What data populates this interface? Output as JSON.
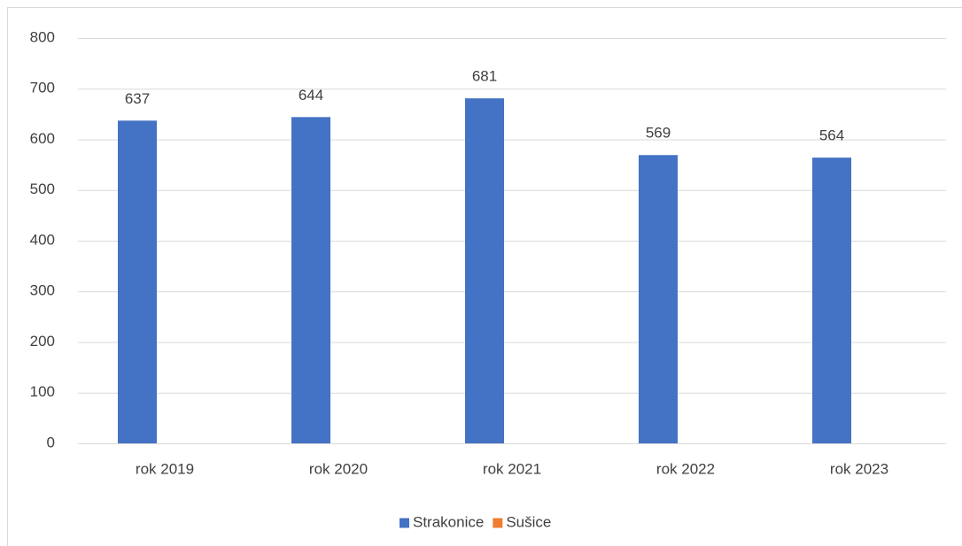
{
  "chart_data": {
    "type": "bar",
    "categories": [
      "rok 2019",
      "rok 2020",
      "rok 2021",
      "rok 2022",
      "rok 2023"
    ],
    "series": [
      {
        "name": "Strakonice",
        "color": "#4472c4",
        "values": [
          637,
          644,
          681,
          569,
          564
        ]
      },
      {
        "name": "Sušice",
        "color": "#ed7d31",
        "values": [
          null,
          null,
          null,
          null,
          null
        ]
      }
    ],
    "ylim": [
      0,
      800
    ],
    "yticks": [
      0,
      100,
      200,
      300,
      400,
      500,
      600,
      700,
      800
    ],
    "grid": true,
    "legend": "bottom",
    "data_labels": true
  }
}
